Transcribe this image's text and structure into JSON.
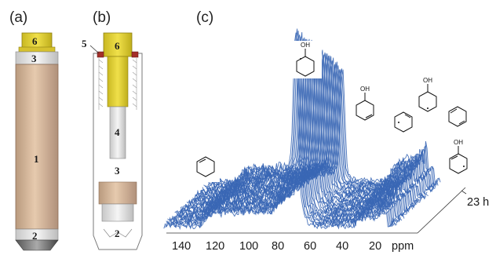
{
  "panels": {
    "a": {
      "label": "(a)",
      "parts": [
        "6",
        "3",
        "1",
        "2"
      ]
    },
    "b": {
      "label": "(b)",
      "parts": [
        "5",
        "6",
        "4",
        "3",
        "2"
      ]
    },
    "c": {
      "label": "(c)",
      "x_axis": {
        "ticks": [
          "140",
          "120",
          "100",
          "80",
          "60",
          "40",
          "20"
        ],
        "unit": "ppm"
      },
      "time_label": "23 h",
      "molecule_oh_label": "OH",
      "colors": {
        "spectrum": "#3a67b5",
        "cap": "#e4d62a",
        "rotor_body": "#d7b79a"
      }
    }
  }
}
